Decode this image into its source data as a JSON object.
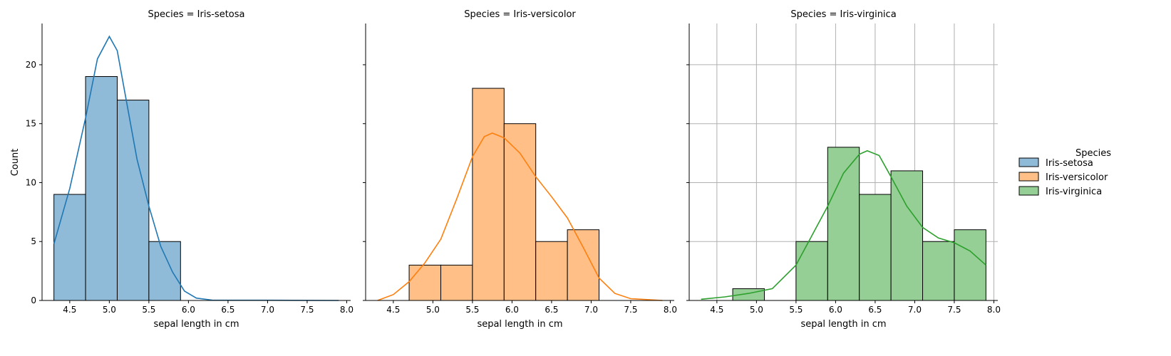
{
  "figure": {
    "ylabel": "Count",
    "xlabel": "sepal length in cm"
  },
  "legend": {
    "title": "Species",
    "items": [
      {
        "label": "Iris-setosa",
        "color": "#1f77b4",
        "fill": "#8fbbd9"
      },
      {
        "label": "Iris-versicolor",
        "color": "#ff7f0e",
        "fill": "#ffbf86"
      },
      {
        "label": "Iris-virginica",
        "color": "#2ca02c",
        "fill": "#95cf95"
      }
    ]
  },
  "chart_data": {
    "type": "bar",
    "subtype": "histogram-with-kde",
    "xlabel": "sepal length in cm",
    "ylabel": "Count",
    "xlim": [
      4.15,
      8.05
    ],
    "ylim": [
      0,
      23.5
    ],
    "xticks": [
      4.5,
      5.0,
      5.5,
      6.0,
      6.5,
      7.0,
      7.5,
      8.0
    ],
    "xtick_labels": [
      "4.5",
      "5.0",
      "5.5",
      "6.0",
      "6.5",
      "7.0",
      "7.5",
      "8.0"
    ],
    "yticks": [
      0,
      5,
      10,
      15,
      20
    ],
    "ytick_labels": [
      "0",
      "5",
      "10",
      "15",
      "20"
    ],
    "bin_edges": [
      4.3,
      4.7,
      5.1,
      5.5,
      5.9,
      6.3,
      6.7,
      7.1,
      7.5,
      7.9
    ],
    "panels": [
      {
        "title": "Species = Iris-setosa",
        "series": "Iris-setosa",
        "color": "#1f77b4",
        "fill": "#8fbbd9",
        "grid": false,
        "counts": [
          9,
          19,
          17,
          5,
          0,
          0,
          0,
          0,
          0
        ],
        "kde": [
          [
            4.3,
            4.8
          ],
          [
            4.5,
            9.5
          ],
          [
            4.7,
            15.5
          ],
          [
            4.85,
            20.5
          ],
          [
            5.0,
            22.4
          ],
          [
            5.1,
            21.2
          ],
          [
            5.2,
            17.5
          ],
          [
            5.35,
            12.0
          ],
          [
            5.5,
            8.0
          ],
          [
            5.65,
            4.6
          ],
          [
            5.8,
            2.4
          ],
          [
            5.95,
            0.8
          ],
          [
            6.1,
            0.2
          ],
          [
            6.3,
            0.03
          ],
          [
            7.9,
            0.0
          ]
        ]
      },
      {
        "title": "Species = Iris-versicolor",
        "series": "Iris-versicolor",
        "color": "#ff7f0e",
        "fill": "#ffbf86",
        "grid": false,
        "counts": [
          0,
          3,
          3,
          18,
          15,
          5,
          6,
          0,
          0
        ],
        "kde": [
          [
            4.3,
            0.0
          ],
          [
            4.5,
            0.5
          ],
          [
            4.7,
            1.6
          ],
          [
            4.9,
            3.2
          ],
          [
            5.1,
            5.2
          ],
          [
            5.3,
            8.6
          ],
          [
            5.5,
            12.2
          ],
          [
            5.65,
            13.9
          ],
          [
            5.75,
            14.2
          ],
          [
            5.9,
            13.8
          ],
          [
            6.1,
            12.5
          ],
          [
            6.3,
            10.5
          ],
          [
            6.5,
            8.8
          ],
          [
            6.7,
            7.0
          ],
          [
            6.9,
            4.5
          ],
          [
            7.1,
            1.9
          ],
          [
            7.3,
            0.6
          ],
          [
            7.5,
            0.15
          ],
          [
            7.9,
            0.0
          ]
        ]
      },
      {
        "title": "Species = Iris-virginica",
        "series": "Iris-virginica",
        "color": "#2ca02c",
        "fill": "#95cf95",
        "grid": true,
        "counts": [
          0,
          1,
          0,
          5,
          13,
          9,
          11,
          5,
          6
        ],
        "kde": [
          [
            4.3,
            0.1
          ],
          [
            4.6,
            0.3
          ],
          [
            4.9,
            0.6
          ],
          [
            5.2,
            1.0
          ],
          [
            5.5,
            3.0
          ],
          [
            5.7,
            5.5
          ],
          [
            5.9,
            8.0
          ],
          [
            6.1,
            10.8
          ],
          [
            6.3,
            12.4
          ],
          [
            6.4,
            12.7
          ],
          [
            6.55,
            12.3
          ],
          [
            6.7,
            10.5
          ],
          [
            6.9,
            8.0
          ],
          [
            7.1,
            6.2
          ],
          [
            7.3,
            5.3
          ],
          [
            7.5,
            4.9
          ],
          [
            7.7,
            4.2
          ],
          [
            7.9,
            3.0
          ]
        ]
      }
    ]
  }
}
